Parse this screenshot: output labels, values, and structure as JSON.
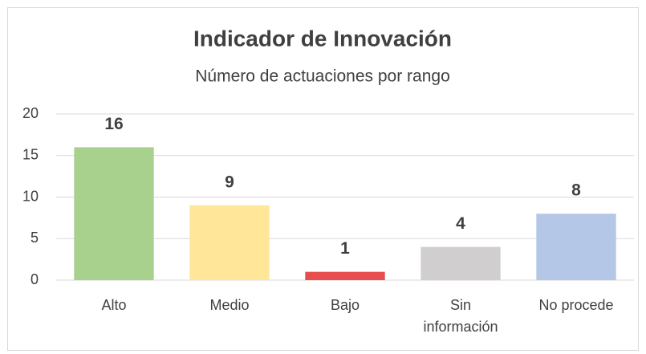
{
  "chart_data": {
    "type": "bar",
    "title": "Indicador de Innovación",
    "subtitle": "Número de actuaciones por rango",
    "categories": [
      "Alto",
      "Medio",
      "Bajo",
      "Sin información",
      "No procede"
    ],
    "values": [
      16,
      9,
      1,
      4,
      8
    ],
    "colors": [
      "#a9d18e",
      "#ffe699",
      "#e84c4c",
      "#d0cece",
      "#b4c7e7"
    ],
    "ylim": [
      0,
      20
    ],
    "yticks": [
      0,
      5,
      10,
      15,
      20
    ],
    "grid": true
  }
}
